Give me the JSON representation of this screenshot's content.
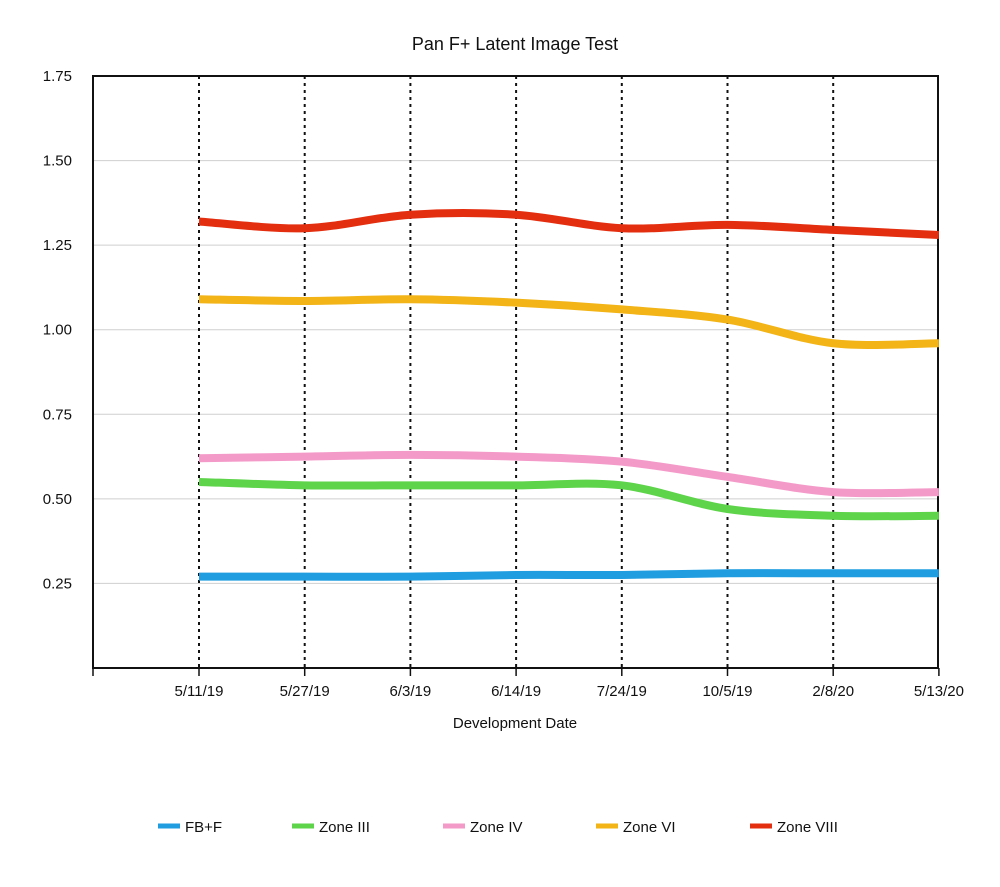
{
  "chart_data": {
    "type": "line",
    "title": "Pan F+ Latent Image Test",
    "xlabel": "Development Date",
    "ylabel": "",
    "categories": [
      "5/11/19",
      "5/27/19",
      "6/3/19",
      "6/14/19",
      "7/24/19",
      "10/5/19",
      "2/8/20",
      "5/13/20"
    ],
    "ylim": [
      0,
      1.75
    ],
    "yticks": [
      0.25,
      0.5,
      0.75,
      1.0,
      1.25,
      1.5,
      1.75
    ],
    "ytick_labels": [
      "0.25",
      "0.50",
      "0.75",
      "1.00",
      "1.25",
      "1.50",
      "1.75"
    ],
    "grid": "horizontal",
    "smooth": true,
    "legend_position": "bottom",
    "series": [
      {
        "name": "FB+F",
        "color": "#1f9de0",
        "values": [
          0.27,
          0.27,
          0.27,
          0.275,
          0.275,
          0.28,
          0.28,
          0.28
        ]
      },
      {
        "name": "Zone III",
        "color": "#5ed44b",
        "values": [
          0.55,
          0.54,
          0.54,
          0.54,
          0.54,
          0.47,
          0.45,
          0.45
        ]
      },
      {
        "name": "Zone IV",
        "color": "#f49ac9",
        "values": [
          0.62,
          0.625,
          0.63,
          0.625,
          0.61,
          0.565,
          0.52,
          0.52
        ]
      },
      {
        "name": "Zone VI",
        "color": "#f2b417",
        "values": [
          1.09,
          1.085,
          1.09,
          1.08,
          1.06,
          1.03,
          0.96,
          0.96
        ]
      },
      {
        "name": "Zone VIII",
        "color": "#e42e10",
        "values": [
          1.32,
          1.3,
          1.34,
          1.34,
          1.3,
          1.31,
          1.295,
          1.28
        ]
      }
    ]
  }
}
